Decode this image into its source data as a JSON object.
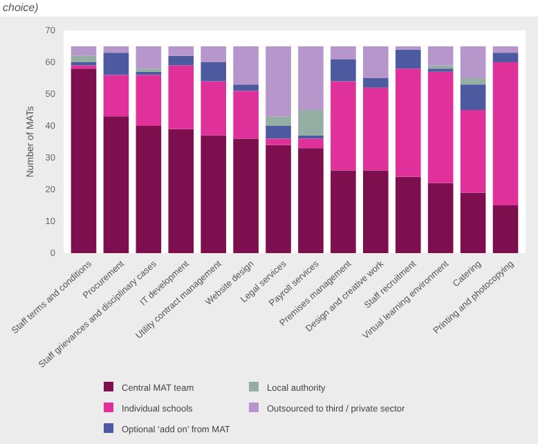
{
  "chart_data": {
    "type": "bar",
    "stacked": true,
    "title": "choice)",
    "ylabel": "Number of MATs",
    "categories": [
      "Staff terms and conditions",
      "Procurement",
      "Staff grievances and disciplinary cases",
      "IT development",
      "Utility contract management",
      "Website design",
      "Legal services",
      "Payroll services",
      "Premises management",
      "Design and creative work",
      "Staff recruitment",
      "Virtual learning environment",
      "Catering",
      "Printing and photocopying"
    ],
    "series": [
      {
        "name": "Central MAT team",
        "color": "#7e0f4f",
        "values": [
          58,
          43,
          40,
          39,
          37,
          36,
          34,
          33,
          26,
          26,
          24,
          22,
          19,
          15
        ]
      },
      {
        "name": "Individual schools",
        "color": "#e0309a",
        "values": [
          1,
          13,
          16,
          20,
          17,
          15,
          2,
          3,
          28,
          26,
          34,
          35,
          26,
          45
        ]
      },
      {
        "name": "Optional ‘add on’ from MAT",
        "color": "#4e5aa0",
        "values": [
          1,
          7,
          1,
          3,
          6,
          2,
          4,
          1,
          7,
          3,
          6,
          1,
          8,
          3
        ]
      },
      {
        "name": "Local authority",
        "color": "#95aea3",
        "values": [
          2,
          0,
          1,
          0,
          0,
          0,
          3,
          8,
          0,
          0,
          0,
          1,
          2,
          0
        ]
      },
      {
        "name": "Outsourced to third / private sector",
        "color": "#b796cc",
        "values": [
          3,
          2,
          7,
          3,
          5,
          12,
          22,
          20,
          4,
          10,
          1,
          6,
          10,
          2
        ]
      }
    ],
    "ylim": [
      0,
      70
    ],
    "yticks": [
      0,
      10,
      20,
      30,
      40,
      50,
      60,
      70
    ],
    "grid": false,
    "legend": "bottom"
  }
}
